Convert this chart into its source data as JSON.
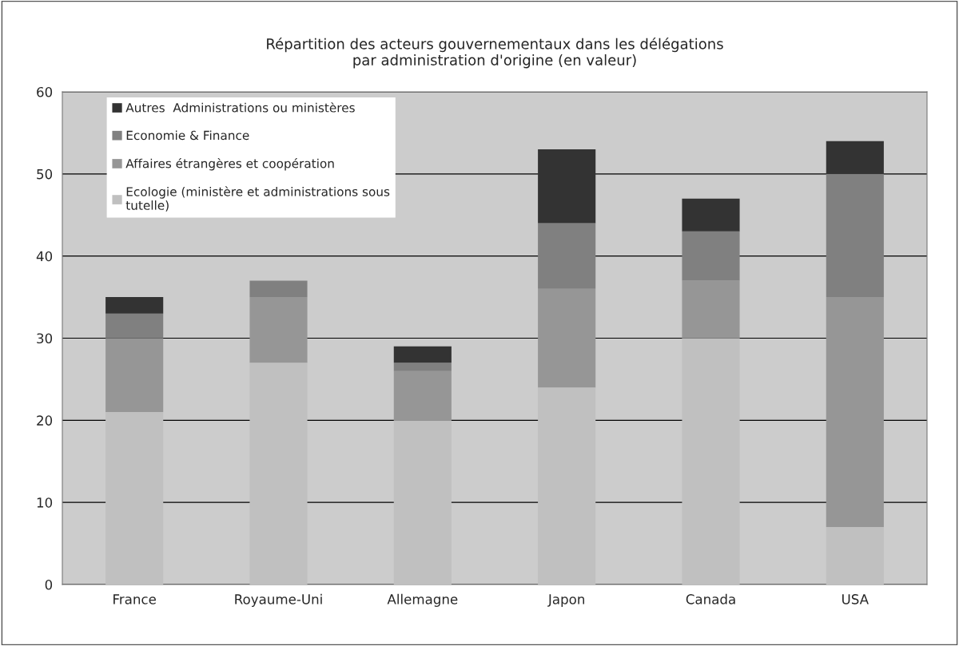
{
  "chart_data": {
    "type": "bar",
    "title": "Répartition des acteurs gouvernementaux dans les délégations\npar administration d'origine (en valeur)",
    "categories": [
      "France",
      "Royaume-Uni",
      "Allemagne",
      "Japon",
      "Canada",
      "USA"
    ],
    "stacked": true,
    "series": [
      {
        "name": "Ecologie (ministère et administrations sous\ntutelle)",
        "color": "#c0c0c0",
        "values": [
          21,
          27,
          20,
          24,
          30,
          7
        ]
      },
      {
        "name": "Affaires étrangères et coopération",
        "color": "#969696",
        "values": [
          9,
          8,
          6,
          12,
          7,
          28
        ]
      },
      {
        "name": "Economie & Finance",
        "color": "#808080",
        "values": [
          3,
          2,
          1,
          8,
          6,
          15
        ]
      },
      {
        "name": "Autres  Administrations ou ministères",
        "color": "#333333",
        "values": [
          2,
          0,
          2,
          9,
          4,
          4
        ]
      }
    ],
    "ylim": [
      0,
      60
    ],
    "yticks": [
      0,
      10,
      20,
      30,
      40,
      50,
      60
    ],
    "grid": "y",
    "legend": "top left"
  }
}
